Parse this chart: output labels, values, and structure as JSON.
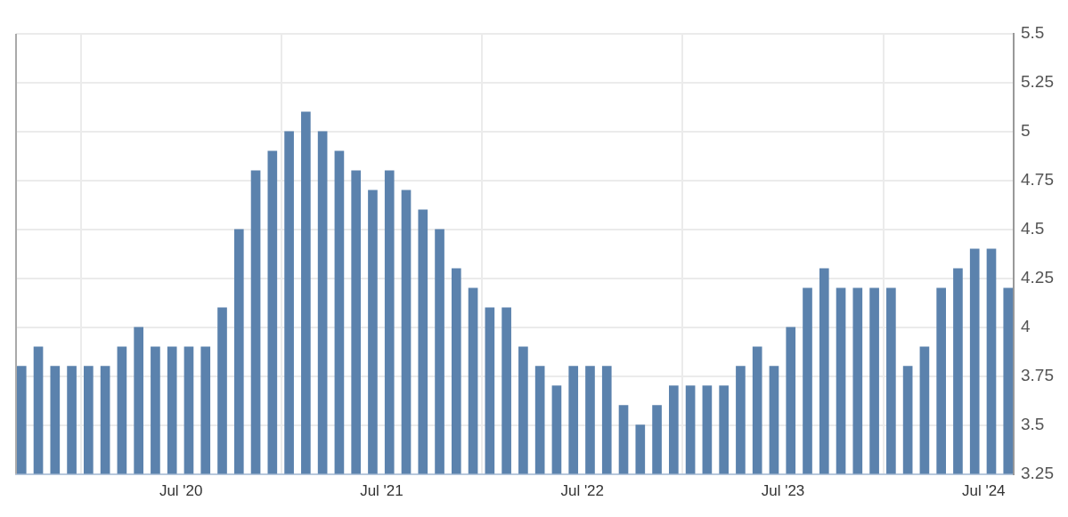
{
  "chart_data": {
    "type": "bar",
    "x": [
      "2019-09-15",
      "2019-10-15",
      "2019-11-15",
      "2019-12-15",
      "2020-01-15",
      "2020-02-15",
      "2020-03-15",
      "2020-04-15",
      "2020-05-15",
      "2020-06-15",
      "2020-07-15",
      "2020-08-15",
      "2020-09-15",
      "2020-10-15",
      "2020-11-15",
      "2020-12-15",
      "2021-01-15",
      "2021-02-15",
      "2021-03-15",
      "2021-04-15",
      "2021-05-15",
      "2021-06-15",
      "2021-07-15",
      "2021-08-15",
      "2021-09-15",
      "2021-10-15",
      "2021-11-15",
      "2021-12-15",
      "2022-01-15",
      "2022-02-15",
      "2022-03-15",
      "2022-04-15",
      "2022-05-15",
      "2022-06-15",
      "2022-07-15",
      "2022-08-15",
      "2022-09-15",
      "2022-10-15",
      "2022-11-15",
      "2022-12-15",
      "2023-01-15",
      "2023-02-15",
      "2023-03-15",
      "2023-04-15",
      "2023-05-15",
      "2023-06-15",
      "2023-07-15",
      "2023-08-15",
      "2023-09-15",
      "2023-10-15",
      "2023-11-15",
      "2023-12-15",
      "2024-01-15",
      "2024-02-15",
      "2024-03-15",
      "2024-04-15",
      "2024-05-15",
      "2024-06-15",
      "2024-07-15",
      "2024-08-15"
    ],
    "values": [
      3.8,
      3.9,
      3.8,
      3.8,
      3.8,
      3.8,
      3.9,
      4.0,
      3.9,
      3.9,
      3.9,
      3.9,
      4.1,
      4.5,
      4.8,
      4.9,
      5.0,
      5.1,
      5.0,
      4.9,
      4.8,
      4.7,
      4.8,
      4.7,
      4.6,
      4.5,
      4.3,
      4.2,
      4.1,
      4.1,
      3.9,
      3.8,
      3.7,
      3.8,
      3.8,
      3.8,
      3.6,
      3.5,
      3.6,
      3.7,
      3.7,
      3.7,
      3.7,
      3.8,
      3.9,
      3.8,
      4.0,
      4.2,
      4.3,
      4.2,
      4.2,
      4.2,
      4.2,
      3.8,
      3.9,
      4.2,
      4.3,
      4.4,
      4.4,
      4.2
    ],
    "color": "#5b82ad",
    "xlim": [
      "2019-09-05",
      "2024-08-25"
    ],
    "xticks": [
      {
        "value": "2020-07",
        "label": "Jul '20"
      },
      {
        "value": "2021-07",
        "label": "Jul '21"
      },
      {
        "value": "2022-07",
        "label": "Jul '22"
      },
      {
        "value": "2023-07",
        "label": "Jul '23"
      },
      {
        "value": "2024-07",
        "label": "Jul '24"
      }
    ],
    "ylim": [
      3.25,
      5.5
    ],
    "yticks": [
      3.25,
      3.5,
      3.75,
      4,
      4.25,
      4.5,
      4.75,
      5,
      5.25,
      5.5
    ],
    "grid": true,
    "legend": false
  }
}
